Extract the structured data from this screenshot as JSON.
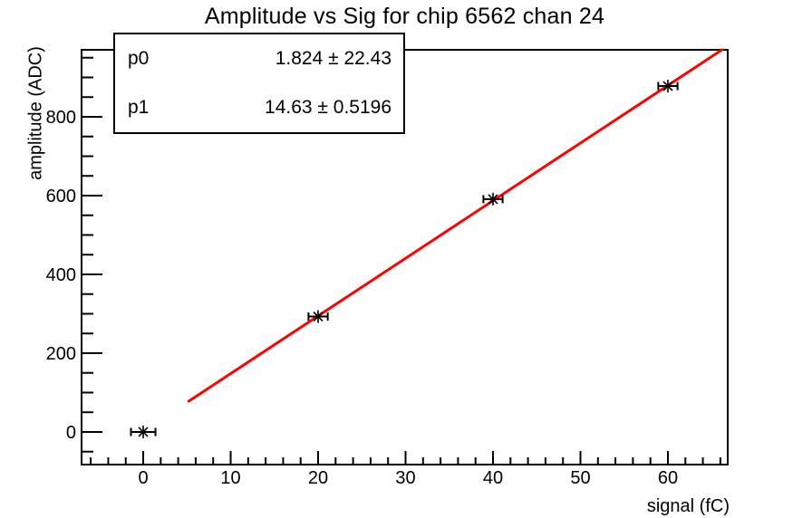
{
  "title": "Amplitude vs Sig for chip 6562 chan 24",
  "stats_box": {
    "rows": [
      {
        "name": "p0",
        "value": "1.824 ± 22.43"
      },
      {
        "name": "p1",
        "value": "14.63 ± 0.5196"
      }
    ]
  },
  "axes": {
    "xlabel": "signal (fC)",
    "ylabel": "amplitude (ADC)"
  },
  "chart_data": {
    "type": "scatter",
    "title": "Amplitude vs Sig for chip 6562 chan 24",
    "xlabel": "signal (fC)",
    "ylabel": "amplitude (ADC)",
    "xlim": [
      -7.05,
      66.84
    ],
    "ylim": [
      -82.8,
      970.1
    ],
    "x_major_ticks": [
      0,
      10,
      20,
      30,
      40,
      50,
      60
    ],
    "x_minor_step": 2,
    "y_major_ticks": [
      0,
      200,
      400,
      600,
      800
    ],
    "y_minor_step": 50,
    "grid": false,
    "legend_position": "none",
    "marker": "asterisk-with-x-error-bars",
    "marker_color": "#000000",
    "points": [
      {
        "x": 0,
        "y": 0,
        "xerr": 1.4
      },
      {
        "x": 20,
        "y": 293,
        "xerr": 1.1
      },
      {
        "x": 40,
        "y": 591,
        "xerr": 1.1
      },
      {
        "x": 60,
        "y": 878,
        "xerr": 1.1
      }
    ],
    "fit_line": {
      "type": "linear",
      "p0": 1.824,
      "p0_error": 22.43,
      "p1": 14.63,
      "p1_error": 0.5196,
      "x_start": 5.2,
      "x_end": 66.2,
      "color": "#ff0000",
      "width": 3
    }
  },
  "colors": {
    "fit_line": "#ff0000",
    "axis": "#000000",
    "text": "#000000",
    "background": "#ffffff"
  }
}
